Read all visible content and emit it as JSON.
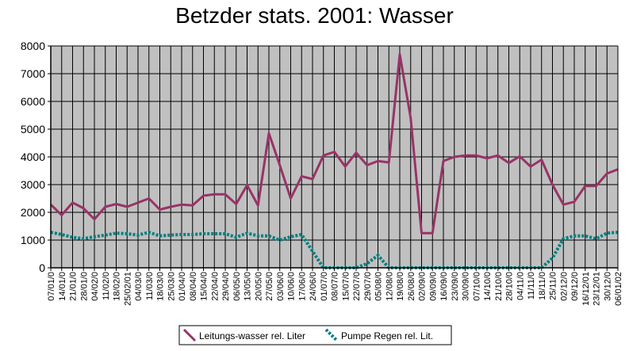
{
  "chart_data": {
    "type": "line",
    "title": "Betzder stats. 2001: Wasser",
    "xlabel": "",
    "ylabel": "",
    "ylim": [
      0,
      8000
    ],
    "yticks": [
      0,
      1000,
      2000,
      3000,
      4000,
      5000,
      6000,
      7000,
      8000
    ],
    "grid": true,
    "legend_position": "bottom",
    "colors": {
      "plot_bg": "#c0c0c0",
      "series_1": "#993366",
      "series_2": "#008080"
    },
    "categories": [
      "07/01/0",
      "14/01/0",
      "21/01/0",
      "28/01/0",
      "04/02/0",
      "11/02/0",
      "18/02/0",
      "25/02/01",
      "04/03/0",
      "11/03/0",
      "18/03/0",
      "25/03/0",
      "01/04/0",
      "08/04/0",
      "15/04/0",
      "22/04/0",
      "29/04/0",
      "06/05/0",
      "13/05/0",
      "20/05/0",
      "27/05/0",
      "03/06/0",
      "10/06/0",
      "17/06/0",
      "24/06/0",
      "01/07/0",
      "08/07/0",
      "15/07/0",
      "22/07/0",
      "29/07/0",
      "05/08/0",
      "12/08/0",
      "19/08/0",
      "26/08/0",
      "02/09/0",
      "09/09/0",
      "16/09/0",
      "23/09/0",
      "30/09/0",
      "07/10/0",
      "14/10/0",
      "21/10/0",
      "28/10/0",
      "04/11/0",
      "11/11/0",
      "18/11/0",
      "25/11/0",
      "02/12/0",
      "09/12/0",
      "16/12/01",
      "23/12/01",
      "30/12/0",
      "06/01/02"
    ],
    "series": [
      {
        "name": "Leitungs-wasser rel. Liter",
        "values": [
          2280,
          1900,
          2350,
          2150,
          1750,
          2200,
          2300,
          2200,
          2350,
          2500,
          2100,
          2200,
          2280,
          2250,
          2600,
          2650,
          2650,
          2300,
          2980,
          2250,
          4850,
          3700,
          2500,
          3300,
          3200,
          4050,
          4180,
          3650,
          4150,
          3700,
          3850,
          3800,
          7700,
          5400,
          1250,
          1250,
          3850,
          4000,
          4050,
          4050,
          3950,
          4050,
          3780,
          4020,
          3650,
          3900,
          3000,
          2280,
          2380,
          2950,
          2950,
          3400,
          3550
        ]
      },
      {
        "name": "Pumpe Regen rel. Lit.",
        "values": [
          1280,
          1200,
          1100,
          1050,
          1120,
          1180,
          1250,
          1230,
          1180,
          1280,
          1150,
          1180,
          1200,
          1200,
          1230,
          1230,
          1230,
          1100,
          1250,
          1150,
          1150,
          1000,
          1120,
          1200,
          600,
          0,
          0,
          0,
          0,
          150,
          450,
          0,
          0,
          0,
          0,
          0,
          0,
          0,
          0,
          0,
          0,
          0,
          0,
          0,
          0,
          0,
          350,
          1050,
          1150,
          1150,
          1050,
          1250,
          1280
        ]
      }
    ]
  }
}
